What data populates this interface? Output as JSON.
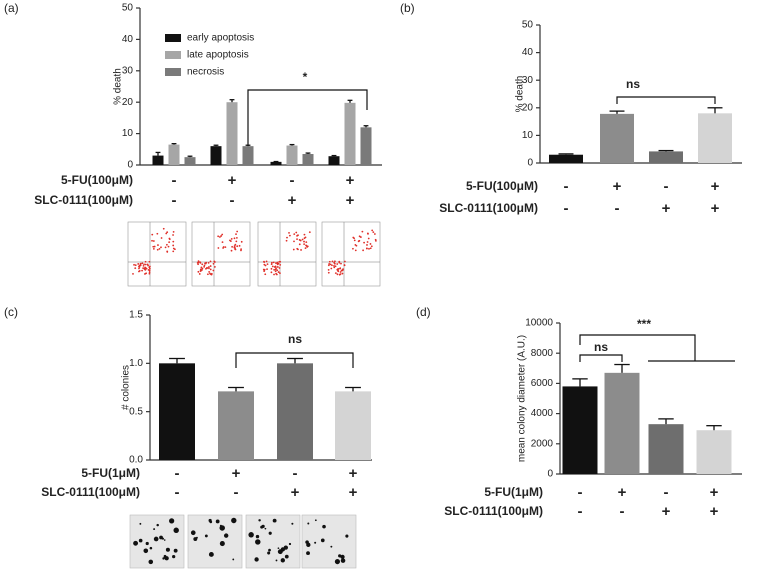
{
  "chart_data": [
    {
      "type": "grouped-bar",
      "panel_label": "(a)",
      "y_label": "% death",
      "ylim": [
        0,
        50
      ],
      "yticks": [
        0,
        10,
        20,
        30,
        40,
        50
      ],
      "series": [
        {
          "name": "early apoptosis",
          "color": "#111111",
          "values": [
            3,
            6,
            1,
            2.8
          ],
          "errors": [
            1,
            0.3,
            0.1,
            0.2
          ]
        },
        {
          "name": "late apoptosis",
          "color": "#a6a6a6",
          "values": [
            6.5,
            20,
            6.2,
            19.8
          ],
          "errors": [
            0.3,
            0.8,
            0.3,
            0.8
          ]
        },
        {
          "name": "necrosis",
          "color": "#7a7a7a",
          "values": [
            2.5,
            6,
            3.5,
            12
          ],
          "errors": [
            0.3,
            0.3,
            0.3,
            0.5
          ]
        }
      ],
      "conditions": [
        {
          "label": "5-FU(100μM)",
          "signs": [
            "-",
            "+",
            "-",
            "+"
          ]
        },
        {
          "label": "SLC-0111(100μM)",
          "signs": [
            "-",
            "-",
            "+",
            "+"
          ]
        }
      ],
      "annotations": [
        {
          "text": "*"
        }
      ]
    },
    {
      "type": "bar",
      "panel_label": "(b)",
      "y_label": "% death",
      "ylim": [
        0,
        50
      ],
      "yticks": [
        0,
        10,
        20,
        30,
        40,
        50
      ],
      "values": [
        3,
        17.8,
        4.2,
        18
      ],
      "errors": [
        0.3,
        1,
        0.3,
        2
      ],
      "colors": [
        "#111111",
        "#8c8c8c",
        "#6e6e6e",
        "#d4d4d4"
      ],
      "conditions": [
        {
          "label": "5-FU(100μM)",
          "signs": [
            "-",
            "+",
            "-",
            "+"
          ]
        },
        {
          "label": "SLC-0111(100μM)",
          "signs": [
            "-",
            "-",
            "+",
            "+"
          ]
        }
      ],
      "annotations": [
        {
          "text": "ns"
        }
      ]
    },
    {
      "type": "bar",
      "panel_label": "(c)",
      "y_label": "# colonies",
      "ylim": [
        0,
        1.5
      ],
      "yticks": [
        {
          "value": 0,
          "label": "0.0"
        },
        0.5,
        {
          "value": 1,
          "label": "1.0"
        },
        1.5
      ],
      "values": [
        1.0,
        0.71,
        1.0,
        0.71
      ],
      "errors": [
        0.05,
        0.04,
        0.05,
        0.04
      ],
      "colors": [
        "#111111",
        "#8c8c8c",
        "#6e6e6e",
        "#d4d4d4"
      ],
      "conditions": [
        {
          "label": "5-FU(1μM)",
          "signs": [
            "-",
            "+",
            "-",
            "+"
          ]
        },
        {
          "label": "SLC-0111(100μM)",
          "signs": [
            "-",
            "-",
            "+",
            "+"
          ]
        }
      ],
      "annotations": [
        {
          "text": "ns"
        }
      ]
    },
    {
      "type": "bar",
      "panel_label": "(d)",
      "y_label": "mean colony diameter (A.U.)",
      "ylim": [
        0,
        10000
      ],
      "yticks": [
        0,
        2000,
        4000,
        6000,
        8000,
        10000
      ],
      "values": [
        5800,
        6700,
        3300,
        2900
      ],
      "errors": [
        500,
        550,
        350,
        300
      ],
      "colors": [
        "#111111",
        "#8c8c8c",
        "#6e6e6e",
        "#d4d4d4"
      ],
      "conditions": [
        {
          "label": "5-FU(1μM)",
          "signs": [
            "-",
            "+",
            "-",
            "+"
          ]
        },
        {
          "label": "SLC-0111(100μM)",
          "signs": [
            "-",
            "-",
            "+",
            "+"
          ]
        }
      ],
      "annotations": [
        {
          "text": "ns"
        },
        {
          "text": "***"
        }
      ]
    }
  ]
}
